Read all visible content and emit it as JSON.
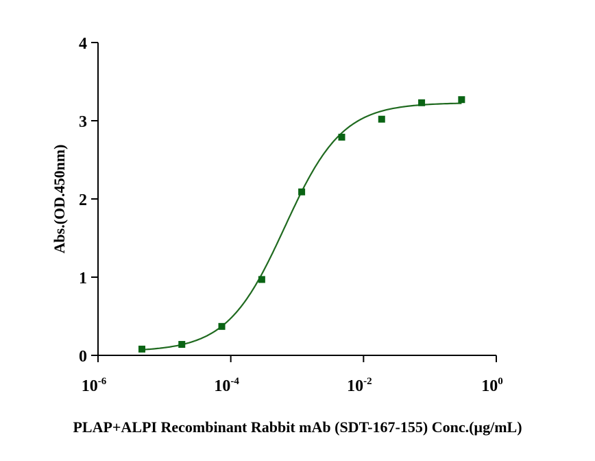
{
  "chart_data": {
    "type": "scatter",
    "title": "",
    "xlabel": "PLAP+ALPI Recombinant Rabbit mAb (SDT-167-155) Conc.(µg/mL)",
    "ylabel": "Abs.(OD.450nm)",
    "xscale": "log",
    "xlim": [
      1e-06,
      1
    ],
    "ylim": [
      0,
      4
    ],
    "xticks": [
      {
        "value": 1e-06,
        "base": "10",
        "exp": "-6"
      },
      {
        "value": 0.0001,
        "base": "10",
        "exp": "-4"
      },
      {
        "value": 0.01,
        "base": "10",
        "exp": "-2"
      },
      {
        "value": 1,
        "base": "10",
        "exp": "0"
      }
    ],
    "yticks": [
      {
        "value": 0,
        "label": "0"
      },
      {
        "value": 1,
        "label": "1"
      },
      {
        "value": 2,
        "label": "2"
      },
      {
        "value": 3,
        "label": "3"
      },
      {
        "value": 4,
        "label": "4"
      }
    ],
    "grid": false,
    "series": [
      {
        "name": "PLAP+ALPI",
        "color": "#0a6414",
        "marker": "square",
        "x": [
          4.58e-06,
          1.83e-05,
          7.32e-05,
          0.000293,
          0.00117,
          0.00469,
          0.01875,
          0.075,
          0.3
        ],
        "y": [
          0.08,
          0.14,
          0.37,
          0.97,
          2.09,
          2.79,
          3.02,
          3.23,
          3.27
        ],
        "fit": {
          "model": "4PL",
          "bottom": 0.05,
          "top": 3.23,
          "ec50": 0.00065,
          "hill": 1.0,
          "color": "#1f6a1f"
        }
      }
    ]
  }
}
